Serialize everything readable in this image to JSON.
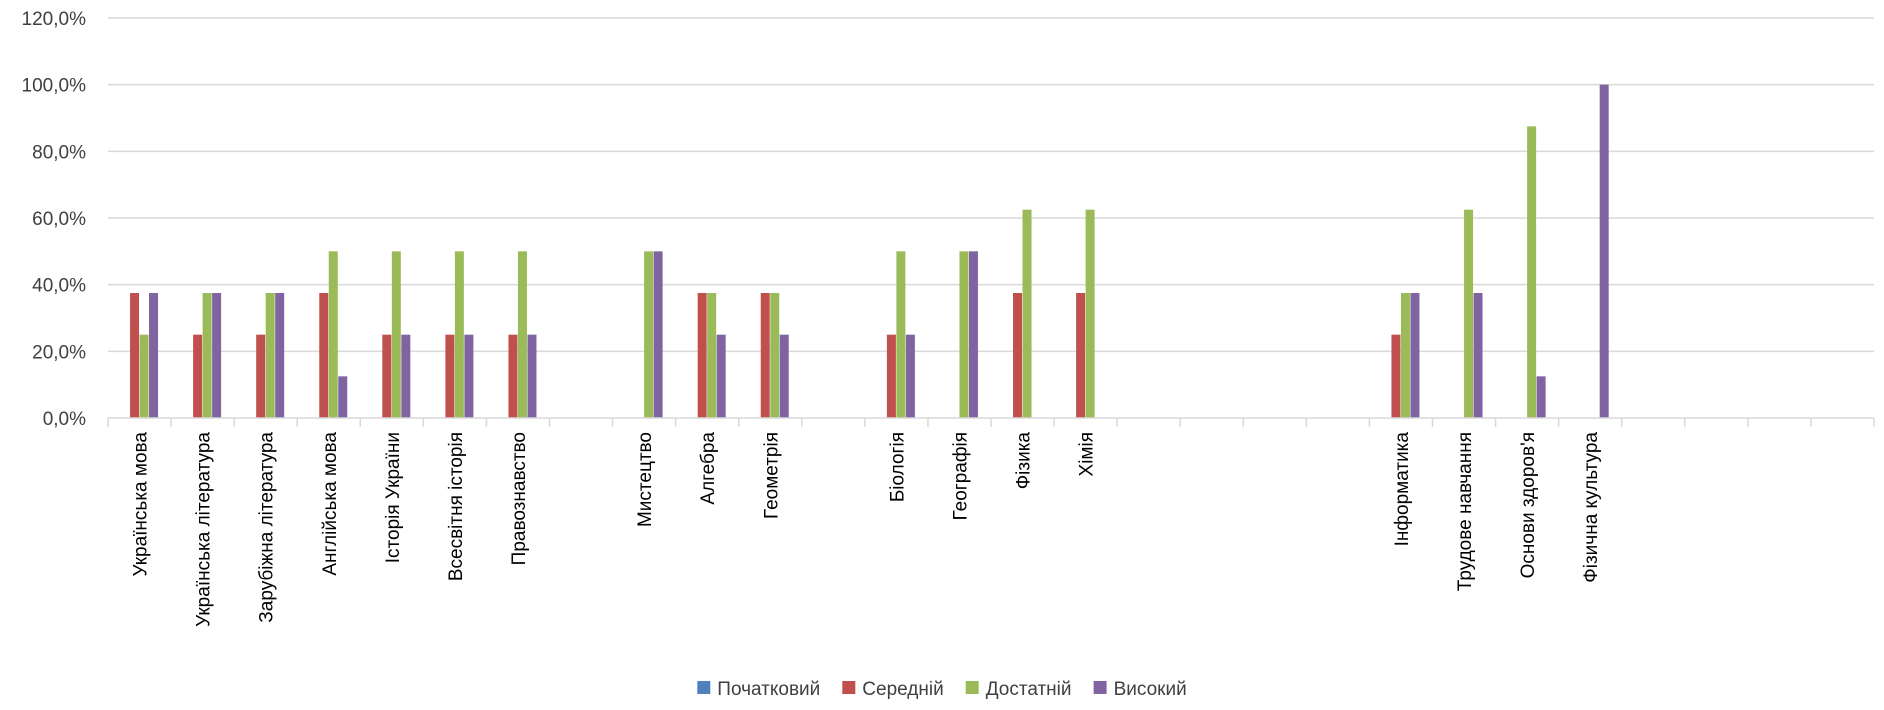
{
  "chart_data": {
    "type": "bar",
    "categories": [
      "Українська мова",
      "Українська література",
      "Зарубіжна література",
      "Англійська мова",
      "Історія України",
      "Всесвітня історія",
      "Правознавство",
      "",
      "Мистецтво",
      "Алгебра",
      "Геометрія",
      "",
      "Біологія",
      "Географія",
      "Фізика",
      "Хімія",
      "",
      "",
      "",
      "",
      "Інформатика",
      "Трудове навчання",
      "Основи здоров'я",
      "Фізична культура",
      "",
      "",
      "",
      ""
    ],
    "series": [
      {
        "name": "Початковий",
        "color": "#4f81bd",
        "values": [
          0,
          0,
          0,
          0,
          0,
          0,
          0,
          0,
          0,
          0,
          0,
          0,
          0,
          0,
          0,
          0,
          0,
          0,
          0,
          0,
          0,
          0,
          0,
          0,
          0,
          0,
          0,
          0
        ]
      },
      {
        "name": "Середній",
        "color": "#c0504d",
        "values": [
          37.5,
          25,
          25,
          37.5,
          25,
          25,
          25,
          0,
          0,
          37.5,
          37.5,
          0,
          25,
          0,
          37.5,
          37.5,
          0,
          0,
          0,
          0,
          25,
          0,
          0,
          0,
          0,
          0,
          0,
          0
        ]
      },
      {
        "name": "Достатній",
        "color": "#9bbb59",
        "values": [
          25,
          37.5,
          37.5,
          50,
          50,
          50,
          50,
          0,
          50,
          37.5,
          37.5,
          0,
          50,
          50,
          62.5,
          62.5,
          0,
          0,
          0,
          0,
          37.5,
          62.5,
          87.5,
          0,
          0,
          0,
          0,
          0
        ]
      },
      {
        "name": "Високий",
        "color": "#8064a2",
        "values": [
          37.5,
          37.5,
          37.5,
          12.5,
          25,
          25,
          25,
          0,
          50,
          25,
          25,
          0,
          25,
          50,
          0,
          0,
          0,
          0,
          0,
          0,
          37.5,
          37.5,
          12.5,
          100,
          0,
          0,
          0,
          0
        ]
      }
    ],
    "yticks": [
      "0,0%",
      "20,0%",
      "40,0%",
      "60,0%",
      "80,0%",
      "100,0%",
      "120,0%"
    ],
    "ylim": [
      0,
      120
    ],
    "grid": true,
    "legend_position": "bottom"
  }
}
